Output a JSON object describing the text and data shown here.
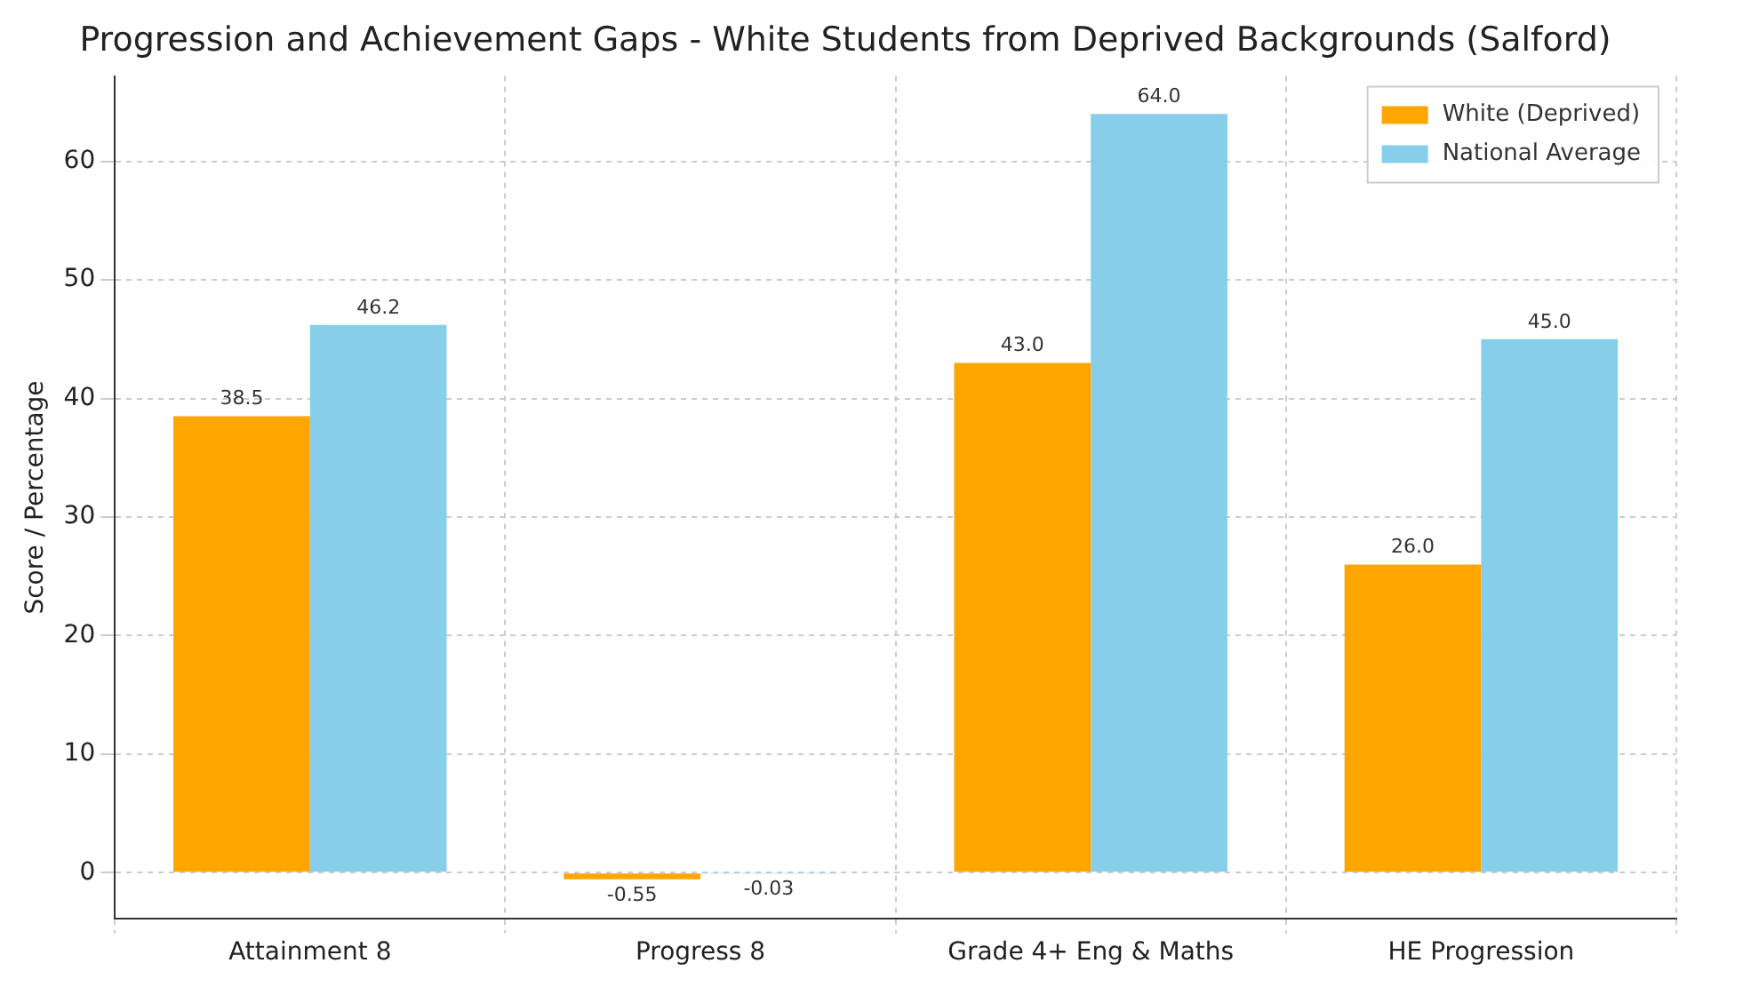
{
  "chart_data": {
    "type": "bar",
    "title": "Progression and Achievement Gaps - White Students from Deprived Backgrounds (Salford)",
    "ylabel": "Score / Percentage",
    "categories": [
      "Attainment 8",
      "Progress 8",
      "Grade 4+ Eng & Maths",
      "HE Progression"
    ],
    "series": [
      {
        "name": "White (Deprived)",
        "color": "#ffa500",
        "values": [
          38.5,
          -0.55,
          43.0,
          26.0
        ],
        "value_labels": [
          "38.5",
          "-0.55",
          "43.0",
          "26.0"
        ]
      },
      {
        "name": "National Average",
        "color": "#87ceeb",
        "values": [
          46.2,
          -0.03,
          64.0,
          45.0
        ],
        "value_labels": [
          "46.2",
          "-0.03",
          "64.0",
          "45.0"
        ]
      }
    ],
    "ylim": [
      -3.9,
      67.2
    ],
    "yticks": [
      0,
      10,
      20,
      30,
      40,
      50,
      60
    ],
    "grid": true,
    "legend": "top right"
  }
}
